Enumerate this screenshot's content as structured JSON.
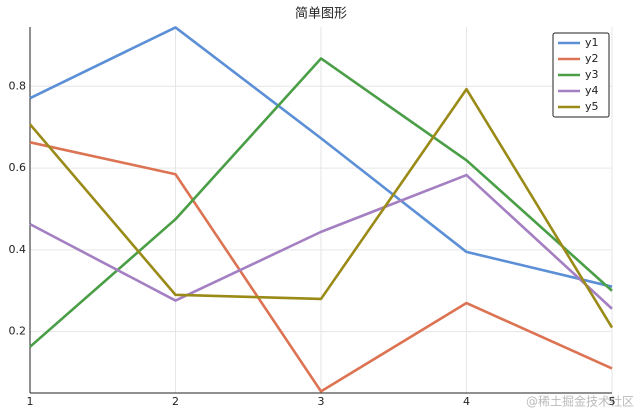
{
  "chart_data": {
    "type": "line",
    "title": "简单图形",
    "x": [
      1,
      2,
      3,
      4,
      5
    ],
    "series": [
      {
        "name": "y1",
        "color": "#5b8fd6",
        "values": [
          0.771,
          0.944,
          0.673,
          0.395,
          0.31
        ]
      },
      {
        "name": "y2",
        "color": "#dc7352",
        "values": [
          0.663,
          0.585,
          0.054,
          0.27,
          0.11
        ]
      },
      {
        "name": "y3",
        "color": "#4a9e46",
        "values": [
          0.163,
          0.475,
          0.868,
          0.619,
          0.3
        ]
      },
      {
        "name": "y4",
        "color": "#a47fc2",
        "values": [
          0.463,
          0.276,
          0.444,
          0.583,
          0.256
        ]
      },
      {
        "name": "y5",
        "color": "#9a8a17",
        "values": [
          0.707,
          0.29,
          0.28,
          0.793,
          0.21
        ]
      }
    ],
    "xlim": [
      1,
      5
    ],
    "xticks": [
      1,
      2,
      3,
      4,
      5
    ],
    "ylim": [
      0.05,
      0.945
    ],
    "yticks": [
      0.2,
      0.4,
      0.6,
      0.8
    ],
    "grid": true,
    "legend": "top-right",
    "watermark": "@稀土掘金技术社区"
  }
}
